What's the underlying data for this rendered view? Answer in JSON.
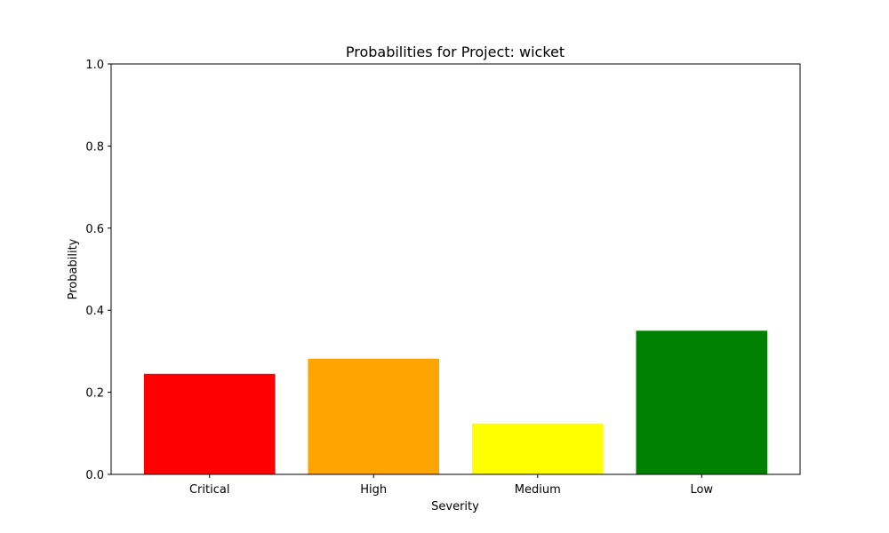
{
  "chart_data": {
    "type": "bar",
    "title": "Probabilities for Project: wicket",
    "xlabel": "Severity",
    "ylabel": "Probability",
    "categories": [
      "Critical",
      "High",
      "Medium",
      "Low"
    ],
    "values": [
      0.245,
      0.282,
      0.124,
      0.35
    ],
    "colors": [
      "#ff0000",
      "#ffa500",
      "#ffff00",
      "#008000"
    ],
    "ylim": [
      0,
      1.0
    ],
    "yticks": [
      "0.0",
      "0.2",
      "0.4",
      "0.6",
      "0.8",
      "1.0"
    ],
    "grid": false,
    "legend": "none"
  }
}
